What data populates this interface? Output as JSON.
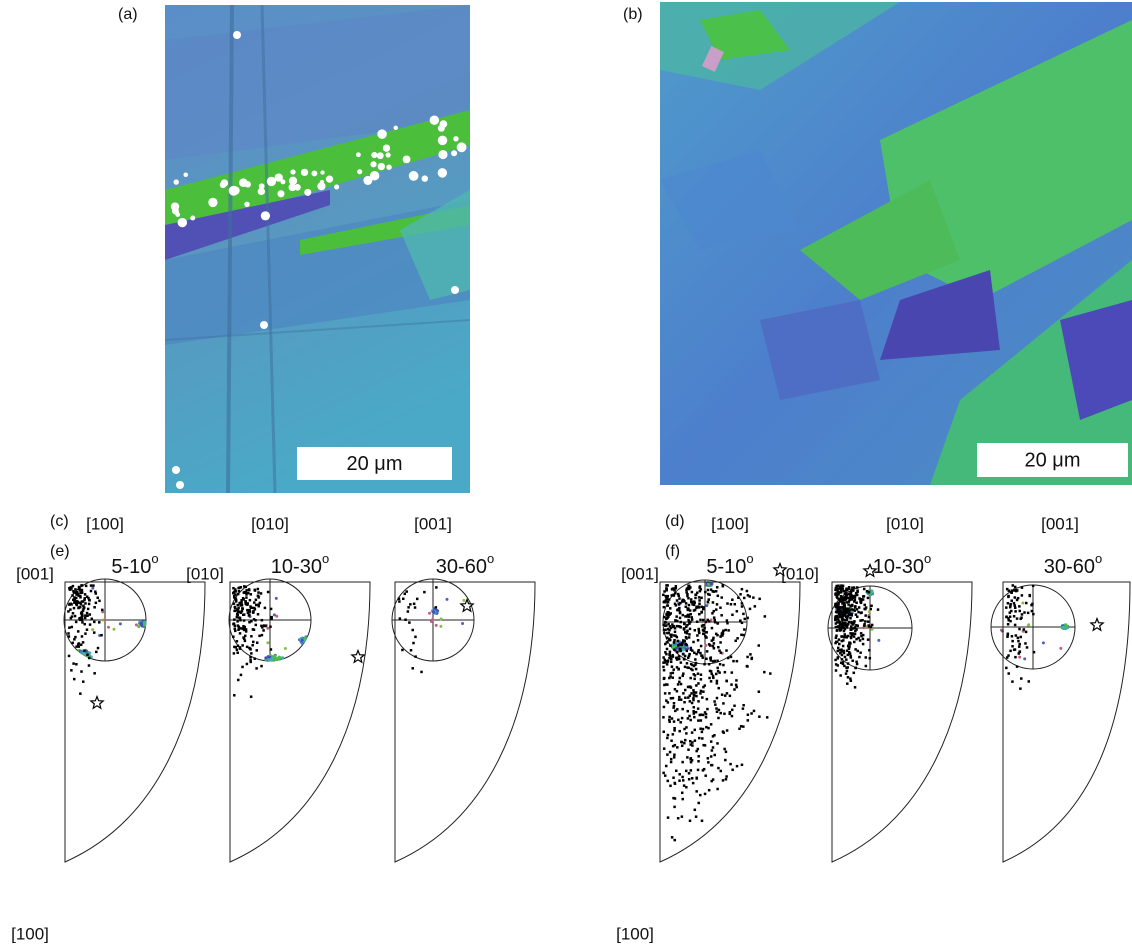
{
  "panels": [
    {
      "label": "(a)",
      "scale_bar": "20 μm"
    },
    {
      "label": "(b)",
      "scale_bar": "20 μm"
    },
    {
      "label": "(c)",
      "pole_figures": [
        "[100]",
        "[010]",
        "[001]"
      ]
    },
    {
      "label": "(d)",
      "pole_figures": [
        "[100]",
        "[010]",
        "[001]"
      ]
    },
    {
      "label": "(e)",
      "corner_labels": {
        "top_left": "[001]",
        "top_right": "[010]",
        "bottom": "[100]"
      },
      "ranges": [
        {
          "range": "5-10",
          "unit": "o"
        },
        {
          "range": "10-30",
          "unit": "o"
        },
        {
          "range": "30-60",
          "unit": "o"
        }
      ]
    },
    {
      "label": "(f)",
      "corner_labels": {
        "top_left": "[001]",
        "top_right": "[010]",
        "bottom": "[100]"
      },
      "ranges": [
        {
          "range": "5-10",
          "unit": "o"
        },
        {
          "range": "10-30",
          "unit": "o"
        },
        {
          "range": "30-60",
          "unit": "o"
        }
      ]
    }
  ]
}
